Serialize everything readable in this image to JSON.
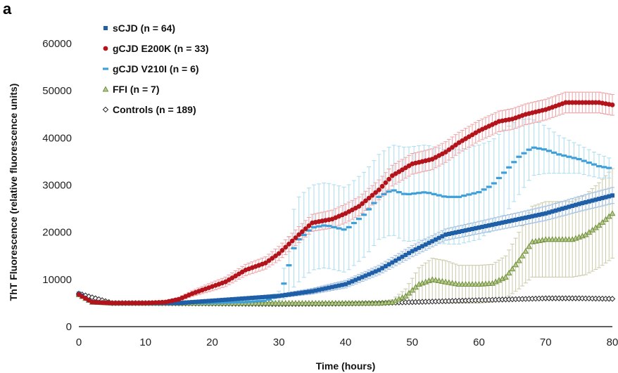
{
  "panel_label": "a",
  "colors": {
    "sCJD": "#1f5fa8",
    "gCJD_E200K": "#b3141c",
    "gCJD_V210I": "#3f9fd8",
    "FFI": "#6f8f3a",
    "Controls": "#333333",
    "sCJD_err": "#9bbce0",
    "gCJD_E200K_err": "#eea1a4",
    "gCJD_V210I_err": "#a8dcf0",
    "FFI_err": "#c9c9a8",
    "Controls_err": "#bbbbbb"
  },
  "chart_data": {
    "type": "scatter",
    "title": "",
    "xlabel": "Time (hours)",
    "ylabel": "ThT Fluorescence (relative fluorescence units)",
    "xlim": [
      0,
      80
    ],
    "ylim": [
      0,
      60000
    ],
    "xticks": [
      0,
      10,
      20,
      30,
      40,
      50,
      60,
      70,
      80
    ],
    "yticks": [
      0,
      10000,
      20000,
      30000,
      40000,
      50000,
      60000
    ],
    "grid": false,
    "legend_position": "top-left",
    "legend": [
      "sCJD (n = 64)",
      "gCJD E200K (n = 33)",
      "gCJD V210I (n = 6)",
      "FFI (n = 7)",
      "Controls (n = 189)"
    ],
    "series": [
      {
        "name": "sCJD (n = 64)",
        "marker": "square",
        "color_key": "sCJD",
        "x": [
          0,
          2,
          5,
          10,
          15,
          20,
          25,
          30,
          35,
          40,
          45,
          50,
          55,
          60,
          65,
          70,
          75,
          80
        ],
        "y": [
          7000,
          5200,
          5000,
          5000,
          5000,
          5500,
          6000,
          6500,
          7500,
          9000,
          12000,
          16000,
          19500,
          21000,
          22500,
          24000,
          26000,
          27800
        ],
        "err": [
          0,
          0,
          0,
          0,
          100,
          200,
          300,
          400,
          600,
          800,
          1000,
          1200,
          1200,
          1300,
          1400,
          1500,
          1600,
          1700
        ]
      },
      {
        "name": "gCJD E200K (n = 33)",
        "marker": "circle",
        "color_key": "gCJD_E200K",
        "x": [
          0,
          2,
          5,
          10,
          13,
          15,
          17,
          20,
          22,
          25,
          28,
          30,
          33,
          35,
          38,
          40,
          42,
          45,
          47,
          50,
          53,
          55,
          57,
          60,
          63,
          65,
          67,
          70,
          73,
          75,
          78,
          80
        ],
        "y": [
          6800,
          5200,
          5000,
          5000,
          5200,
          5800,
          7000,
          8500,
          9500,
          12000,
          13500,
          15500,
          19500,
          22000,
          22800,
          24000,
          25500,
          29000,
          32000,
          34500,
          35500,
          37000,
          39000,
          41500,
          43500,
          44000,
          45000,
          46000,
          47500,
          47500,
          47500,
          47000
        ],
        "err": [
          0,
          0,
          0,
          0,
          200,
          400,
          600,
          900,
          1000,
          1200,
          1300,
          1500,
          1700,
          1800,
          1900,
          2000,
          2000,
          2100,
          2200,
          2200,
          2200,
          2200,
          2200,
          2200,
          2200,
          2200,
          2200,
          2200,
          2200,
          2200,
          2200,
          2200
        ]
      },
      {
        "name": "gCJD V210I (n = 6)",
        "marker": "dash",
        "color_key": "gCJD_V210I",
        "x": [
          0,
          2,
          5,
          10,
          15,
          20,
          25,
          28,
          30,
          31,
          32,
          33,
          35,
          37,
          40,
          43,
          45,
          47,
          49,
          52,
          55,
          57,
          60,
          62,
          64,
          66,
          68,
          70,
          72,
          75,
          78,
          80
        ],
        "y": [
          6800,
          5200,
          5000,
          5000,
          5000,
          5000,
          5200,
          5500,
          6500,
          10000,
          16000,
          18500,
          21000,
          21500,
          20500,
          24000,
          27500,
          29000,
          28000,
          28500,
          27500,
          27500,
          28500,
          30000,
          33000,
          36000,
          38000,
          37500,
          36500,
          35500,
          34000,
          33500
        ],
        "err": [
          0,
          0,
          0,
          0,
          100,
          200,
          300,
          400,
          1000,
          4000,
          8000,
          9000,
          9000,
          9000,
          9000,
          9000,
          9000,
          9500,
          10000,
          10000,
          10000,
          10000,
          10000,
          9500,
          9000,
          8000,
          6000,
          5000,
          4000,
          3000,
          2500,
          2000
        ]
      },
      {
        "name": "FFI (n = 7)",
        "marker": "triangle",
        "color_key": "FFI",
        "x": [
          0,
          2,
          5,
          10,
          15,
          20,
          25,
          30,
          35,
          40,
          45,
          47,
          49,
          51,
          53,
          55,
          57,
          60,
          62,
          64,
          66,
          68,
          70,
          72,
          74,
          76,
          78,
          80
        ],
        "y": [
          6800,
          5200,
          5000,
          5000,
          5000,
          5000,
          5000,
          5000,
          5000,
          5000,
          5000,
          5200,
          6500,
          9000,
          10000,
          9500,
          9000,
          9000,
          9200,
          10500,
          14000,
          18000,
          18500,
          18500,
          18500,
          19500,
          21500,
          24000
        ],
        "err": [
          0,
          0,
          0,
          0,
          0,
          0,
          0,
          0,
          0,
          0,
          200,
          500,
          1500,
          3500,
          4500,
          4500,
          4000,
          4000,
          4000,
          4500,
          6000,
          7500,
          8000,
          8000,
          8000,
          8500,
          9000,
          9500
        ]
      },
      {
        "name": "Controls (n = 189)",
        "marker": "diamond",
        "color_key": "Controls",
        "x": [
          0,
          5,
          10,
          20,
          30,
          40,
          45,
          50,
          60,
          70,
          75,
          80
        ],
        "y": [
          7000,
          5000,
          5000,
          4900,
          4800,
          4900,
          5000,
          5200,
          5600,
          6000,
          6000,
          5900
        ],
        "err": [
          0,
          0,
          0,
          0,
          0,
          0,
          0,
          0,
          0,
          0,
          0,
          0
        ]
      }
    ]
  }
}
